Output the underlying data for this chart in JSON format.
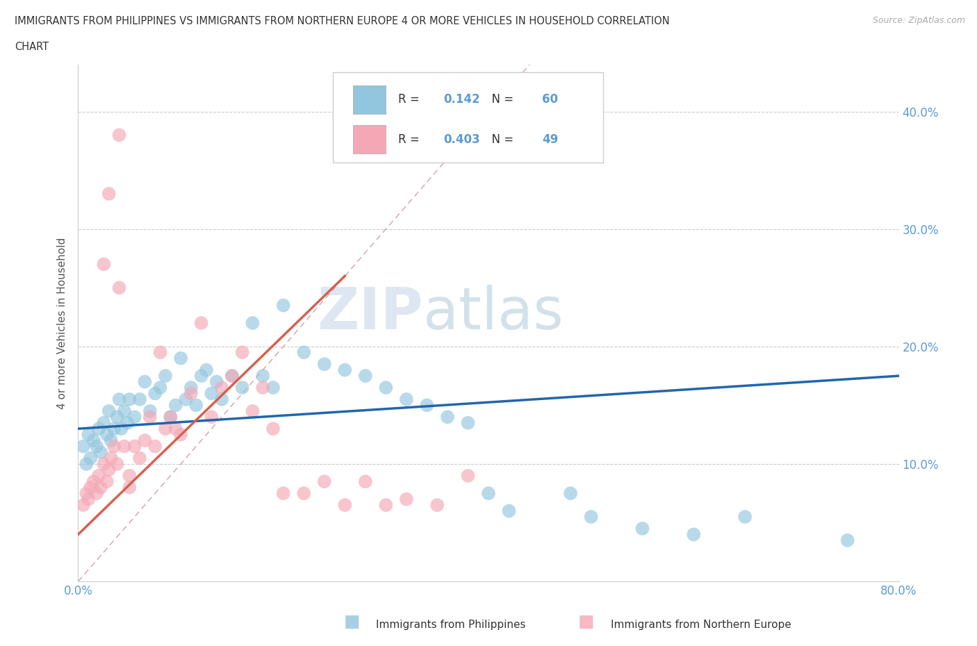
{
  "title_line1": "IMMIGRANTS FROM PHILIPPINES VS IMMIGRANTS FROM NORTHERN EUROPE 4 OR MORE VEHICLES IN HOUSEHOLD CORRELATION",
  "title_line2": "CHART",
  "source": "Source: ZipAtlas.com",
  "ylabel": "4 or more Vehicles in Household",
  "xlim": [
    0.0,
    0.8
  ],
  "ylim": [
    0.0,
    0.44
  ],
  "blue_R": 0.142,
  "blue_N": 60,
  "pink_R": 0.403,
  "pink_N": 49,
  "blue_color": "#92C5DE",
  "pink_color": "#F4A7B5",
  "blue_line_color": "#2166AC",
  "pink_line_color": "#D6604D",
  "diagonal_color": "#E8B4B8",
  "watermark_zip": "ZIP",
  "watermark_atlas": "atlas",
  "legend_label_blue": "Immigrants from Philippines",
  "legend_label_pink": "Immigrants from Northern Europe",
  "blue_x": [
    0.005,
    0.008,
    0.01,
    0.012,
    0.015,
    0.018,
    0.02,
    0.022,
    0.025,
    0.028,
    0.03,
    0.032,
    0.035,
    0.038,
    0.04,
    0.042,
    0.045,
    0.048,
    0.05,
    0.055,
    0.06,
    0.065,
    0.07,
    0.075,
    0.08,
    0.085,
    0.09,
    0.095,
    0.1,
    0.105,
    0.11,
    0.115,
    0.12,
    0.125,
    0.13,
    0.135,
    0.14,
    0.15,
    0.16,
    0.17,
    0.18,
    0.19,
    0.2,
    0.22,
    0.24,
    0.26,
    0.28,
    0.3,
    0.32,
    0.34,
    0.36,
    0.38,
    0.4,
    0.42,
    0.48,
    0.5,
    0.55,
    0.6,
    0.65,
    0.75
  ],
  "blue_y": [
    0.115,
    0.1,
    0.125,
    0.105,
    0.12,
    0.115,
    0.13,
    0.11,
    0.135,
    0.125,
    0.145,
    0.12,
    0.13,
    0.14,
    0.155,
    0.13,
    0.145,
    0.135,
    0.155,
    0.14,
    0.155,
    0.17,
    0.145,
    0.16,
    0.165,
    0.175,
    0.14,
    0.15,
    0.19,
    0.155,
    0.165,
    0.15,
    0.175,
    0.18,
    0.16,
    0.17,
    0.155,
    0.175,
    0.165,
    0.22,
    0.175,
    0.165,
    0.235,
    0.195,
    0.185,
    0.18,
    0.175,
    0.165,
    0.155,
    0.15,
    0.14,
    0.135,
    0.075,
    0.06,
    0.075,
    0.055,
    0.045,
    0.04,
    0.055,
    0.035
  ],
  "pink_x": [
    0.005,
    0.008,
    0.01,
    0.012,
    0.015,
    0.018,
    0.02,
    0.022,
    0.025,
    0.028,
    0.03,
    0.032,
    0.035,
    0.038,
    0.04,
    0.045,
    0.05,
    0.055,
    0.06,
    0.065,
    0.07,
    0.075,
    0.08,
    0.085,
    0.09,
    0.095,
    0.1,
    0.11,
    0.12,
    0.13,
    0.14,
    0.15,
    0.16,
    0.17,
    0.18,
    0.19,
    0.2,
    0.22,
    0.24,
    0.26,
    0.28,
    0.3,
    0.32,
    0.35,
    0.38,
    0.025,
    0.03,
    0.04,
    0.05
  ],
  "pink_y": [
    0.065,
    0.075,
    0.07,
    0.08,
    0.085,
    0.075,
    0.09,
    0.08,
    0.1,
    0.085,
    0.095,
    0.105,
    0.115,
    0.1,
    0.25,
    0.115,
    0.09,
    0.115,
    0.105,
    0.12,
    0.14,
    0.115,
    0.195,
    0.13,
    0.14,
    0.13,
    0.125,
    0.16,
    0.22,
    0.14,
    0.165,
    0.175,
    0.195,
    0.145,
    0.165,
    0.13,
    0.075,
    0.075,
    0.085,
    0.065,
    0.085,
    0.065,
    0.07,
    0.065,
    0.09,
    0.27,
    0.33,
    0.38,
    0.08
  ],
  "background_color": "#FFFFFF",
  "grid_color": "#CCCCCC",
  "tick_color": "#5B9BD5",
  "axis_color": "#CCCCCC"
}
